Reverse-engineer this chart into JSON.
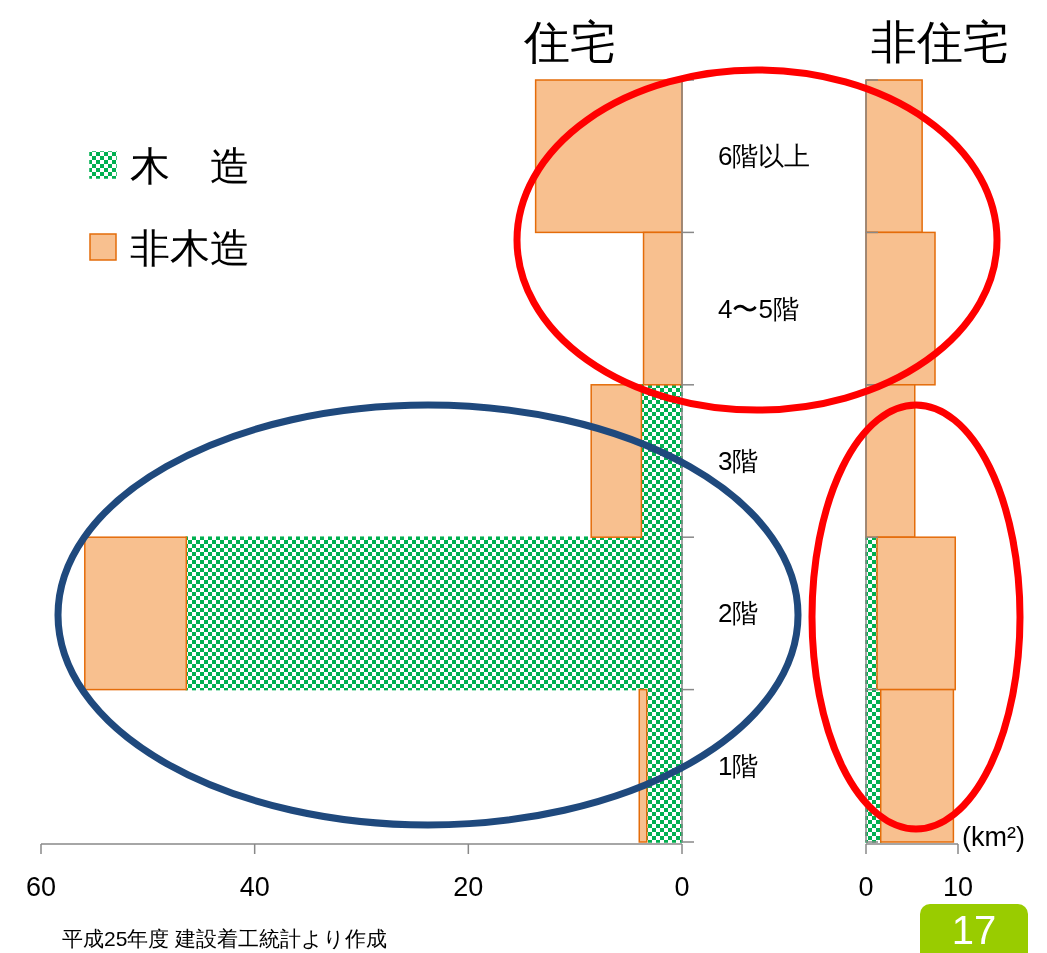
{
  "chart_data": [
    {
      "type": "bar",
      "orientation": "horizontal",
      "stacked": true,
      "title": "住宅",
      "categories": [
        "6階以上",
        "4〜5階",
        "3階",
        "2階",
        "1階"
      ],
      "xlim": [
        60,
        0
      ],
      "xticks": [
        60,
        40,
        20,
        0
      ],
      "legend": "top left",
      "grid": false,
      "series": [
        {
          "name": "木　造",
          "color": "#00b050",
          "values": [
            0,
            0,
            3.8,
            46.4,
            3.3
          ]
        },
        {
          "name": "非木造",
          "color": "#f8c08f",
          "values": [
            13.7,
            3.6,
            4.7,
            9.5,
            0.7
          ]
        }
      ],
      "annotations": [
        "平成25年度 建設着工統計より作成",
        "17"
      ]
    },
    {
      "type": "bar",
      "orientation": "horizontal",
      "stacked": true,
      "title": "非住宅",
      "xlabel": "(km²)",
      "categories": [
        null,
        null,
        null,
        null,
        null
      ],
      "xlim": [
        0,
        10
      ],
      "xticks": [
        0,
        10
      ],
      "grid": false,
      "series": [
        {
          "color": "#00b050",
          "values": [
            0,
            0,
            0,
            1.2,
            1.6
          ]
        },
        {
          "color": "#f8c08f",
          "values": [
            6.1,
            7.5,
            5.3,
            8.5,
            7.9
          ]
        }
      ]
    }
  ]
}
